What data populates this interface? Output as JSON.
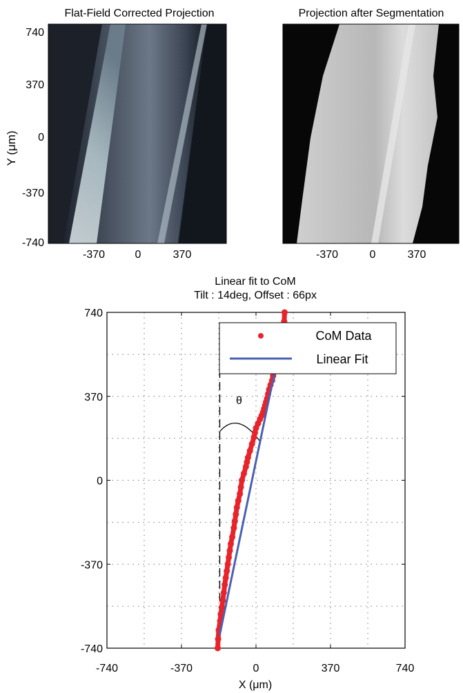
{
  "panels": {
    "flat_field": {
      "title": "Flat-Field Corrected Projection",
      "ylabel": "Y (μm)",
      "yticks": [
        "740",
        "370",
        "0",
        "-370",
        "-740"
      ],
      "xticks": [
        "-370",
        "0",
        "370"
      ]
    },
    "segmented": {
      "title": "Projection after Segmentation",
      "xticks": [
        "-370",
        "0",
        "370"
      ]
    }
  },
  "chart_data": {
    "type": "scatter",
    "title": "Linear fit to CoM",
    "subtitle": "Tilt : 14deg, Offset : 66px",
    "xlabel": "X (μm)",
    "ylabel": "",
    "xlim": [
      -740,
      740
    ],
    "ylim": [
      -740,
      740
    ],
    "xticks": [
      -740,
      -370,
      0,
      370,
      740
    ],
    "yticks": [
      740,
      370,
      0,
      -370,
      -740
    ],
    "grid": "dotted",
    "legend_position": "top-right",
    "angle_label": "θ",
    "colors": {
      "data": "#e8232a",
      "fit": "#4a5fb5"
    },
    "series": [
      {
        "name": "CoM Data",
        "style": "markers",
        "x": [
          -190,
          -188,
          -185,
          -178,
          -175,
          -170,
          -165,
          -160,
          -155,
          -150,
          -145,
          -140,
          -135,
          -130,
          -125,
          -118,
          -110,
          -105,
          -100,
          -95,
          -88,
          -80,
          -75,
          -70,
          -60,
          -50,
          -45,
          -40,
          -30,
          -20,
          -10,
          -5,
          0,
          10,
          20,
          28,
          35,
          40,
          45,
          50,
          55,
          60,
          65,
          72,
          80,
          85,
          92,
          100,
          110,
          120,
          130,
          135,
          140,
          142
        ],
        "y": [
          -740,
          -700,
          -660,
          -620,
          -590,
          -560,
          -530,
          -495,
          -460,
          -430,
          -400,
          -370,
          -340,
          -310,
          -280,
          -250,
          -210,
          -180,
          -150,
          -120,
          -90,
          -60,
          -30,
          0,
          30,
          60,
          80,
          100,
          130,
          160,
          190,
          210,
          230,
          250,
          270,
          285,
          300,
          315,
          330,
          345,
          360,
          380,
          400,
          420,
          440,
          460,
          480,
          500,
          540,
          580,
          620,
          660,
          700,
          740
        ]
      },
      {
        "name": "Linear Fit",
        "style": "line",
        "x": [
          -180,
          105
        ],
        "y": [
          -680,
          530
        ]
      }
    ]
  }
}
